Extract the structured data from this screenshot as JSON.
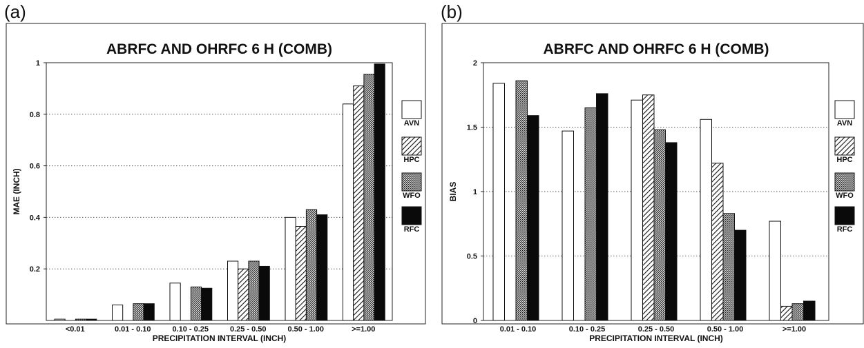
{
  "panels": [
    {
      "label": "(a)"
    },
    {
      "label": "(b)"
    }
  ],
  "legend": [
    {
      "name": "AVN",
      "pattern": "white"
    },
    {
      "name": "HPC",
      "pattern": "diagonal"
    },
    {
      "name": "WFO",
      "pattern": "crosshatch"
    },
    {
      "name": "RFC",
      "pattern": "black"
    }
  ],
  "chart_data": [
    {
      "type": "bar",
      "title": "ABRFC AND OHRFC  6 H  (COMB)",
      "xlabel": "PRECIPITATION INTERVAL (INCH)",
      "ylabel": "MAE (INCH)",
      "ylim": [
        0,
        1
      ],
      "yticks": [
        "0.2",
        "0.4",
        "0.6",
        "0.8",
        "1"
      ],
      "ytick_values": [
        0.2,
        0.4,
        0.6,
        0.8,
        1.0
      ],
      "grid": "dotted horizontal",
      "legend_position": "right",
      "categories": [
        "<0.01",
        "0.01 - 0.10",
        "0.10 - 0.25",
        "0.25 - 0.50",
        "0.50 - 1.00",
        ">=1.00"
      ],
      "series": [
        {
          "name": "AVN",
          "values": [
            0.005,
            0.06,
            0.145,
            0.23,
            0.4,
            0.84
          ]
        },
        {
          "name": "HPC",
          "values": [
            0.0,
            0.0,
            0.0,
            0.2,
            0.365,
            0.91
          ]
        },
        {
          "name": "WFO",
          "values": [
            0.005,
            0.065,
            0.13,
            0.23,
            0.43,
            0.955
          ]
        },
        {
          "name": "RFC",
          "values": [
            0.005,
            0.065,
            0.125,
            0.21,
            0.41,
            0.995
          ]
        }
      ]
    },
    {
      "type": "bar",
      "title": "ABRFC AND OHRFC  6 H  (COMB)",
      "xlabel": "PRECIPITATION INTERVAL (INCH)",
      "ylabel": "BIAS",
      "ylim": [
        0,
        2
      ],
      "yticks": [
        "0",
        "0.5",
        "1",
        "1.5",
        "2"
      ],
      "ytick_values": [
        0,
        0.5,
        1.0,
        1.5,
        2.0
      ],
      "grid": "dotted horizontal",
      "legend_position": "right",
      "categories": [
        "0.01 - 0.10",
        "0.10 - 0.25",
        "0.25 - 0.50",
        "0.50 - 1.00",
        ">=1.00"
      ],
      "series": [
        {
          "name": "AVN",
          "values": [
            1.84,
            1.47,
            1.71,
            1.56,
            0.77
          ]
        },
        {
          "name": "HPC",
          "values": [
            0.0,
            0.0,
            1.75,
            1.22,
            0.11
          ]
        },
        {
          "name": "WFO",
          "values": [
            1.86,
            1.65,
            1.48,
            0.83,
            0.13
          ]
        },
        {
          "name": "RFC",
          "values": [
            1.59,
            1.76,
            1.38,
            0.7,
            0.15
          ]
        }
      ]
    }
  ]
}
